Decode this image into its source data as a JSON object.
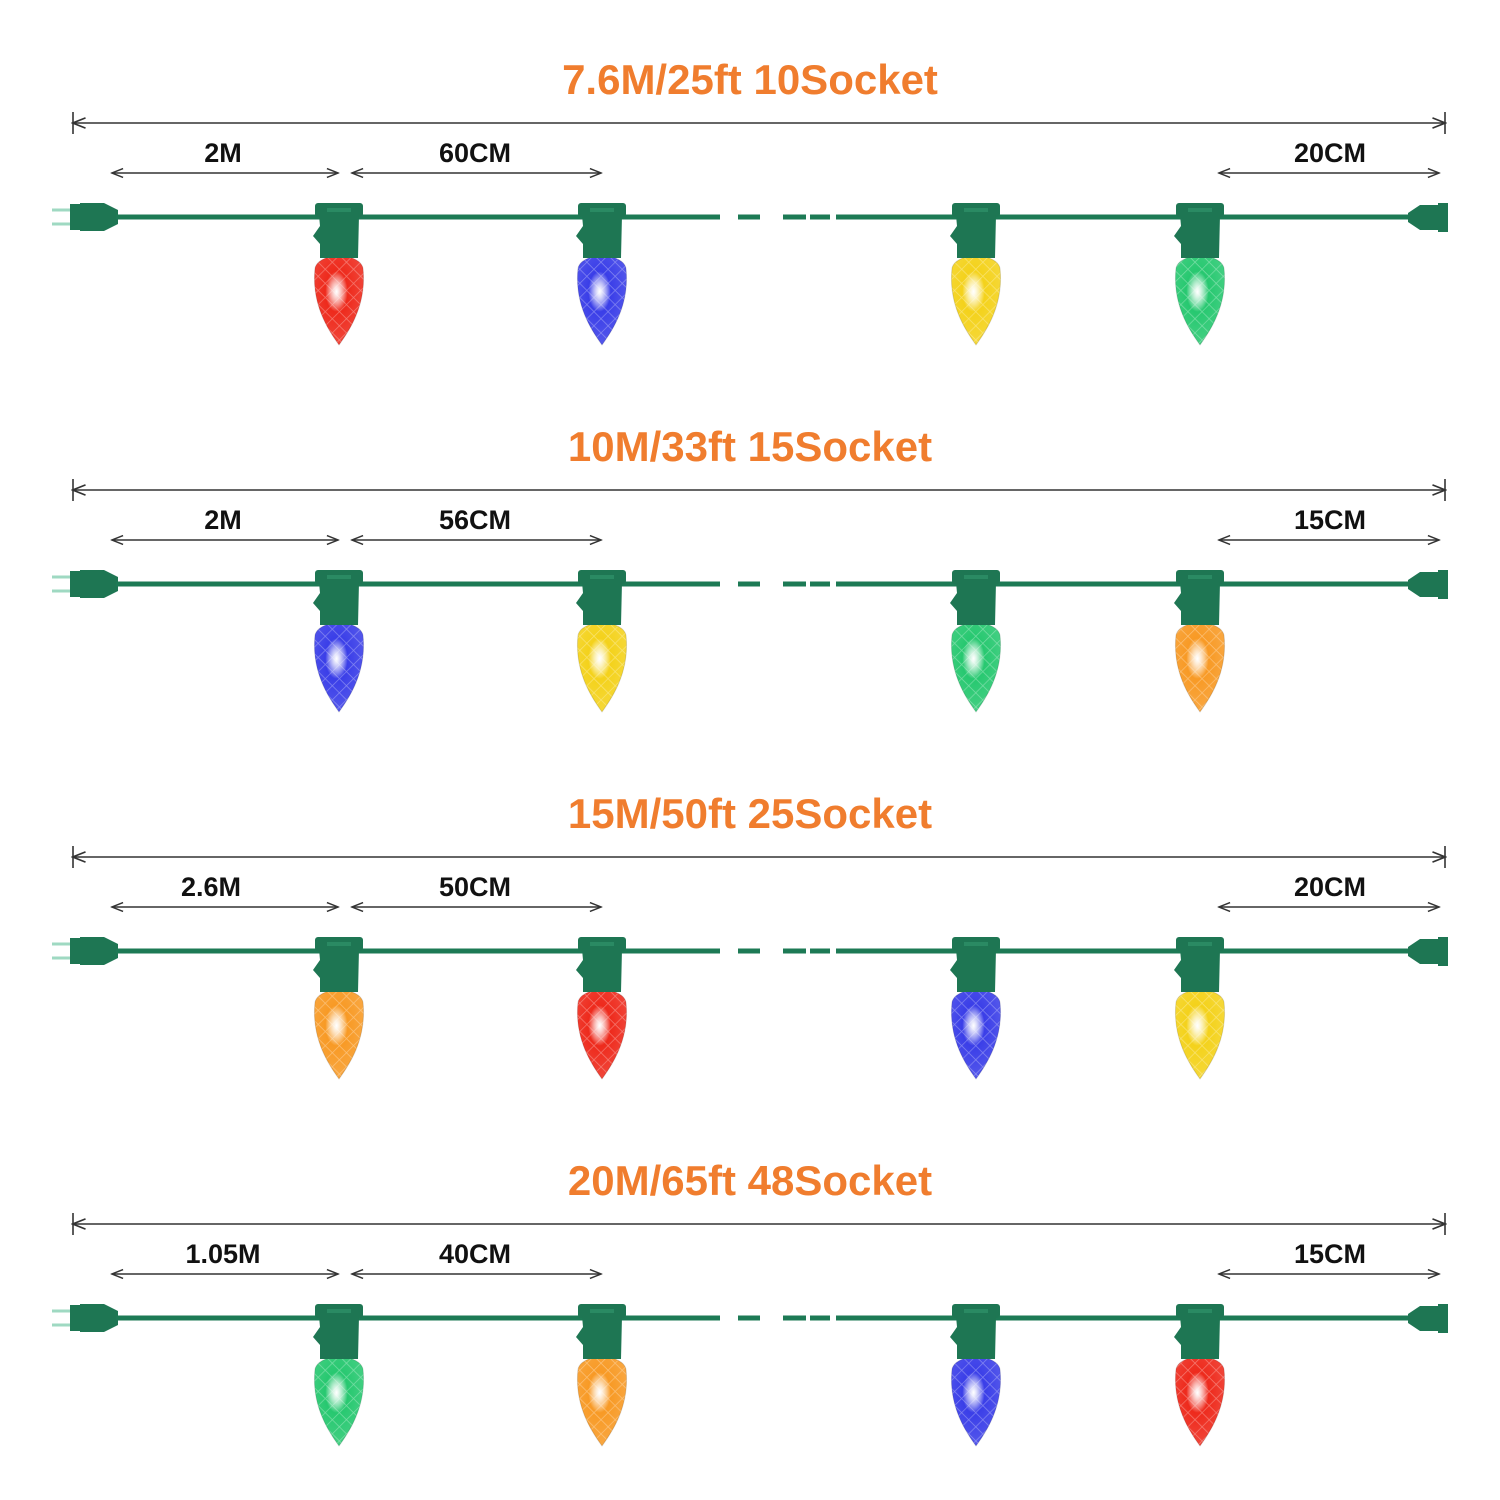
{
  "colors": {
    "title": "#f07d2e",
    "wire": "#1d7a55",
    "socket": "#1e7653",
    "dimension_line": "#333333",
    "label": "#111111",
    "bulbs": {
      "red": "#ee2a1c",
      "blue": "#3a3ee8",
      "yellow": "#f4d21b",
      "green": "#27c870",
      "orange": "#f89a25"
    }
  },
  "icons": [
    "plug-icon",
    "socket-icon",
    "bulb-icon",
    "end-connector-icon"
  ],
  "sections": [
    {
      "title": "7.6M/25ft 10Socket",
      "lead_spacing": "2M",
      "bulb_spacing": "60CM",
      "end_spacing": "20CM",
      "bulbs": [
        "red",
        "blue",
        "yellow",
        "green"
      ]
    },
    {
      "title": "10M/33ft 15Socket",
      "lead_spacing": "2M",
      "bulb_spacing": "56CM",
      "end_spacing": "15CM",
      "bulbs": [
        "blue",
        "yellow",
        "green",
        "orange"
      ]
    },
    {
      "title": "15M/50ft 25Socket",
      "lead_spacing": "2.6M",
      "bulb_spacing": "50CM",
      "end_spacing": "20CM",
      "bulbs": [
        "orange",
        "red",
        "blue",
        "yellow"
      ]
    },
    {
      "title": "20M/65ft 48Socket",
      "lead_spacing": "1.05M",
      "bulb_spacing": "40CM",
      "end_spacing": "15CM",
      "bulbs": [
        "green",
        "orange",
        "blue",
        "red"
      ]
    }
  ]
}
